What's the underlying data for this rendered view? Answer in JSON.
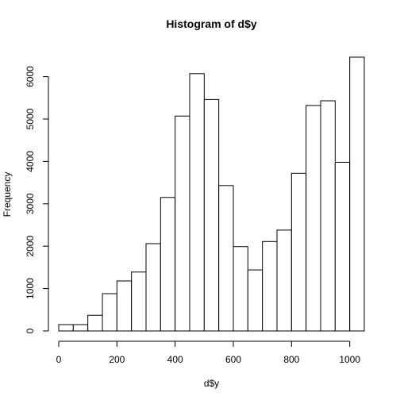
{
  "chart_data": {
    "type": "histogram",
    "title": "Histogram of d$y",
    "xlabel": "d$y",
    "ylabel": "Frequency",
    "bin_width": 50,
    "bins": [
      {
        "start": 0,
        "end": 50,
        "count": 150
      },
      {
        "start": 50,
        "end": 100,
        "count": 150
      },
      {
        "start": 100,
        "end": 150,
        "count": 370
      },
      {
        "start": 150,
        "end": 200,
        "count": 880
      },
      {
        "start": 200,
        "end": 250,
        "count": 1180
      },
      {
        "start": 250,
        "end": 300,
        "count": 1390
      },
      {
        "start": 300,
        "end": 350,
        "count": 2060
      },
      {
        "start": 350,
        "end": 400,
        "count": 3150
      },
      {
        "start": 400,
        "end": 450,
        "count": 5070
      },
      {
        "start": 450,
        "end": 500,
        "count": 6070
      },
      {
        "start": 500,
        "end": 550,
        "count": 5460
      },
      {
        "start": 550,
        "end": 600,
        "count": 3430
      },
      {
        "start": 600,
        "end": 650,
        "count": 1990
      },
      {
        "start": 650,
        "end": 700,
        "count": 1440
      },
      {
        "start": 700,
        "end": 750,
        "count": 2110
      },
      {
        "start": 750,
        "end": 800,
        "count": 2380
      },
      {
        "start": 800,
        "end": 850,
        "count": 3720
      },
      {
        "start": 850,
        "end": 900,
        "count": 5320
      },
      {
        "start": 900,
        "end": 950,
        "count": 5430
      },
      {
        "start": 950,
        "end": 1000,
        "count": 3980
      },
      {
        "start": 1000,
        "end": 1050,
        "count": 6460
      }
    ],
    "xticks": [
      0,
      200,
      400,
      600,
      800,
      1000
    ],
    "yticks": [
      0,
      1000,
      2000,
      3000,
      4000,
      5000,
      6000
    ],
    "xlim": [
      0,
      1050
    ],
    "ylim": [
      0,
      6460
    ],
    "grid": false,
    "bar_fill": "#ffffff",
    "bar_stroke": "#000000"
  }
}
